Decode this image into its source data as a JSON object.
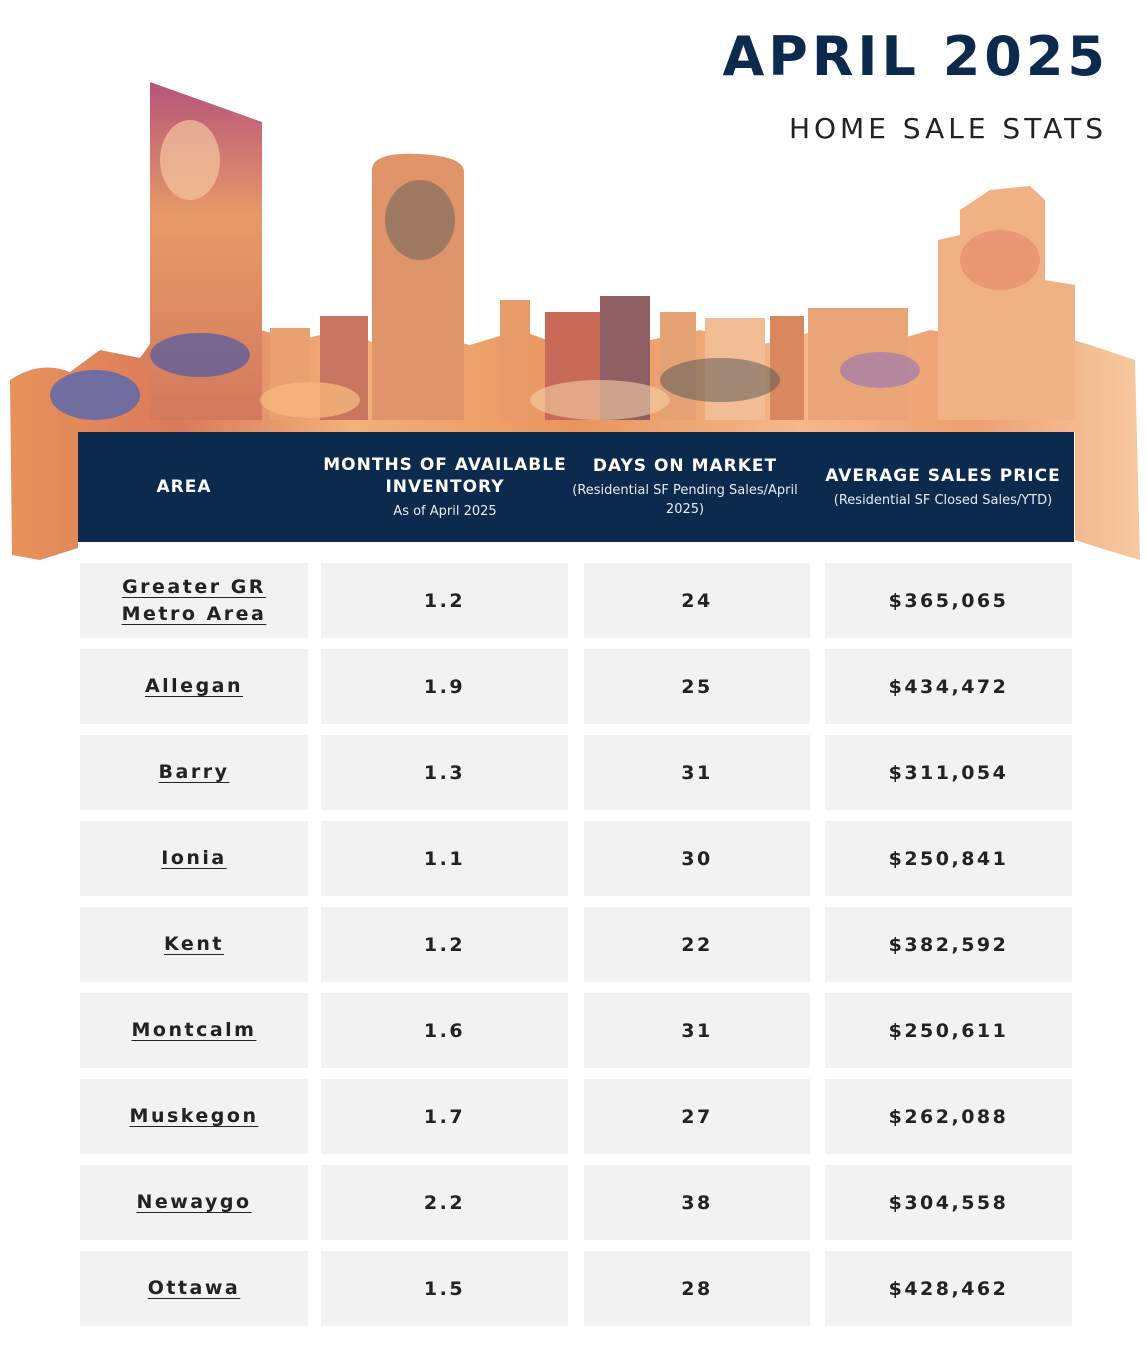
{
  "header": {
    "title": "APRIL 2025",
    "subtitle": "HOME SALE STATS"
  },
  "table": {
    "columns": [
      {
        "label": "AREA",
        "sublabel": ""
      },
      {
        "label": "MONTHS OF AVAILABLE INVENTORY",
        "sublabel": "As of April 2025"
      },
      {
        "label": "DAYS ON MARKET",
        "sublabel": "(Residential SF Pending Sales/April 2025)"
      },
      {
        "label": "AVERAGE SALES PRICE",
        "sublabel": "(Residential SF Closed Sales/YTD)"
      }
    ],
    "rows": [
      {
        "area": "Greater GR Metro Area",
        "months": "1.2",
        "days": "24",
        "price": "$365,065"
      },
      {
        "area": "Allegan",
        "months": "1.9",
        "days": "25",
        "price": "$434,472"
      },
      {
        "area": "Barry",
        "months": "1.3",
        "days": "31",
        "price": "$311,054"
      },
      {
        "area": "Ionia",
        "months": "1.1",
        "days": "30",
        "price": "$250,841"
      },
      {
        "area": "Kent",
        "months": "1.2",
        "days": "22",
        "price": "$382,592"
      },
      {
        "area": "Montcalm",
        "months": "1.6",
        "days": "31",
        "price": "$250,611"
      },
      {
        "area": "Muskegon",
        "months": "1.7",
        "days": "27",
        "price": "$262,088"
      },
      {
        "area": "Newaygo",
        "months": "2.2",
        "days": "38",
        "price": "$304,558"
      },
      {
        "area": "Ottawa",
        "months": "1.5",
        "days": "28",
        "price": "$428,462"
      }
    ]
  },
  "colors": {
    "navy": "#0c2a4d",
    "cell_bg": "#f1f2f1"
  }
}
